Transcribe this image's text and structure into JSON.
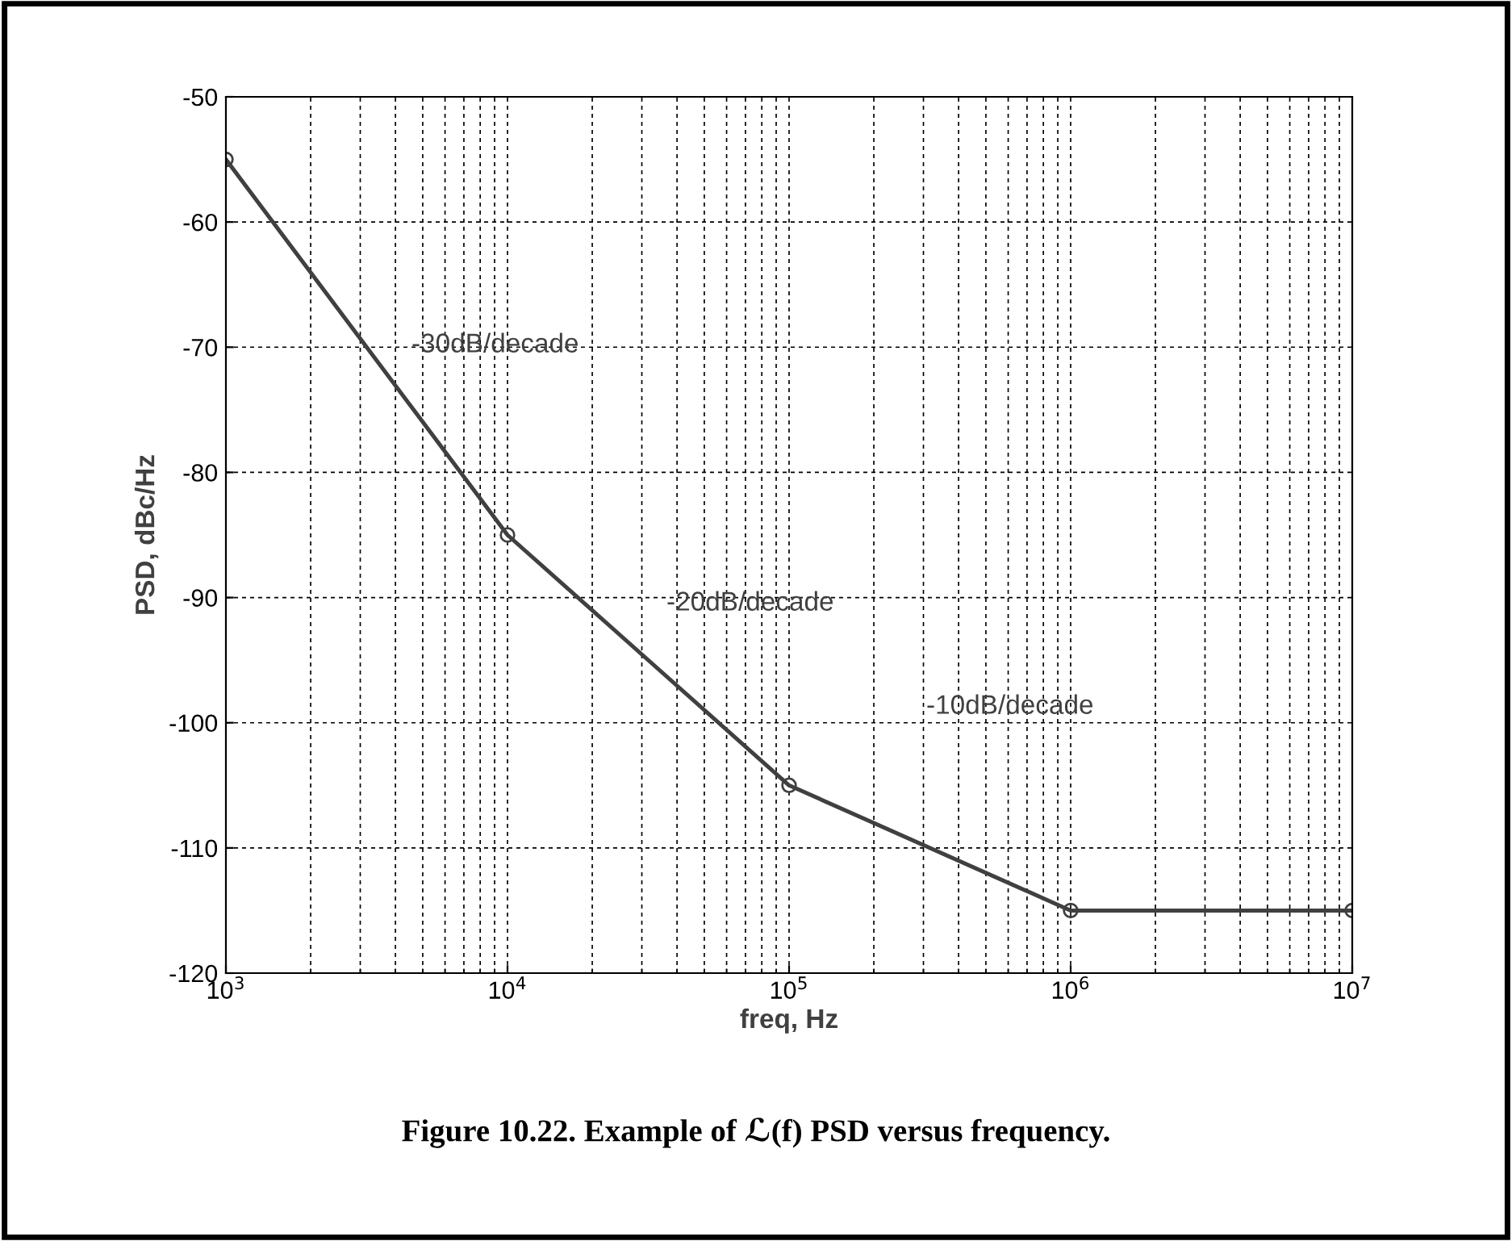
{
  "chart_data": {
    "type": "line",
    "xlabel": "freq, Hz",
    "ylabel": "PSD, dBc/Hz",
    "x": [
      1000,
      10000,
      100000,
      1000000,
      10000000
    ],
    "series": [
      {
        "color": "#404040",
        "values": [
          -55,
          -85,
          -105,
          -115,
          -115
        ]
      }
    ],
    "log": "x",
    "xlim": [
      1000,
      10000000
    ],
    "xticks": [
      {
        "value": 1000,
        "label": "10$^{3}$"
      },
      {
        "value": 10000,
        "label": "10$^{4}$"
      },
      {
        "value": 100000,
        "label": "10$^{5}$"
      },
      {
        "value": 1000000,
        "label": "10$^{6}$"
      },
      {
        "value": 10000000,
        "label": "10$^{7}$"
      }
    ],
    "ylim": [
      -120,
      -50
    ],
    "yticks": [
      -120,
      -110,
      -100,
      -90,
      -80,
      -70,
      -60,
      -50
    ],
    "grid": true,
    "marker": "circle",
    "line_style": "solid",
    "annotations": [
      "-30dB/decade",
      "-20dB/decade",
      "-10dB/decade",
      "Figure 10.22. Example of ℒ(f) PSD versus frequency."
    ]
  }
}
